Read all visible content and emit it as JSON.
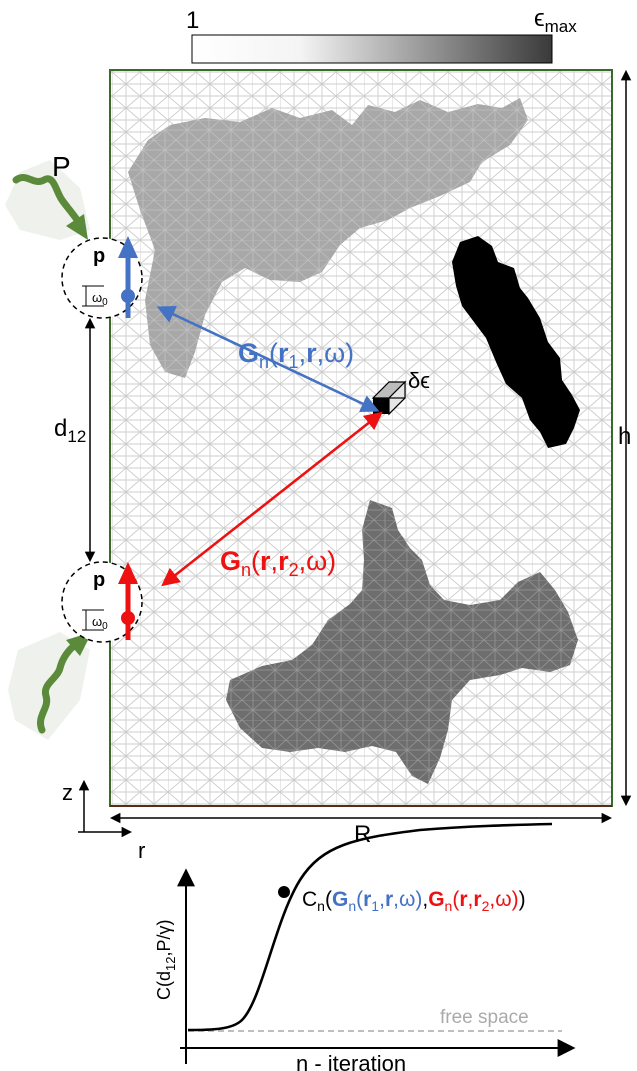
{
  "colorbar": {
    "min_label": "1",
    "max_label": "ϵ",
    "max_sub": "max"
  },
  "sources": {
    "pump_label": "P",
    "dipole_label": "p",
    "freq_label": "ω",
    "freq_sub": "0"
  },
  "green": {
    "g1": {
      "G": "G",
      "n": "n",
      "open": "(",
      "r1": "r",
      "r1sub": "1",
      "sep1": ",",
      "r": "r",
      "sep2": ",ω)"
    },
    "g2": {
      "G": "G",
      "n": "n",
      "open": "(",
      "r": "r",
      "sep1": ",",
      "r2": "r",
      "r2sub": "2",
      "sep2": ",ω)"
    }
  },
  "perturbation": {
    "label": "δϵ"
  },
  "dims": {
    "d_label": "d",
    "d_sub": "12",
    "h_label": "h",
    "R_label": "R"
  },
  "axes": {
    "z": "z",
    "r": "r"
  },
  "plot": {
    "ylabel_pre": "C(d",
    "ylabel_sub": "12",
    "ylabel_post": ",P/γ)",
    "xlabel": "n - iteration",
    "baseline_label": "free space",
    "curve_label": {
      "C": "C",
      "n": "n",
      "open": "(",
      "g1": {
        "G": "G",
        "n": "n",
        "rest_open": "(",
        "r1": "r",
        "sub1": "1",
        "comma": ",",
        "r": "r",
        "tail": ",ω)"
      },
      "mid_comma": ",",
      "g2": {
        "G": "G",
        "n": "n",
        "rest_open": "(",
        "r": "r",
        "comma": ",",
        "r2": "r",
        "sub2": "2",
        "tail": ",ω)"
      },
      "close": ")"
    }
  },
  "colors": {
    "blue": "#4472c4",
    "red": "#ee1111",
    "green_photon": "#5a8a3a",
    "domain_border": "#3a6a2a",
    "mesh": "#c8c8c8",
    "region_light": "#a8a8a8",
    "region_mid": "#6e6e6e",
    "region_dark": "#000000",
    "baseline": "#aaaaaa"
  }
}
